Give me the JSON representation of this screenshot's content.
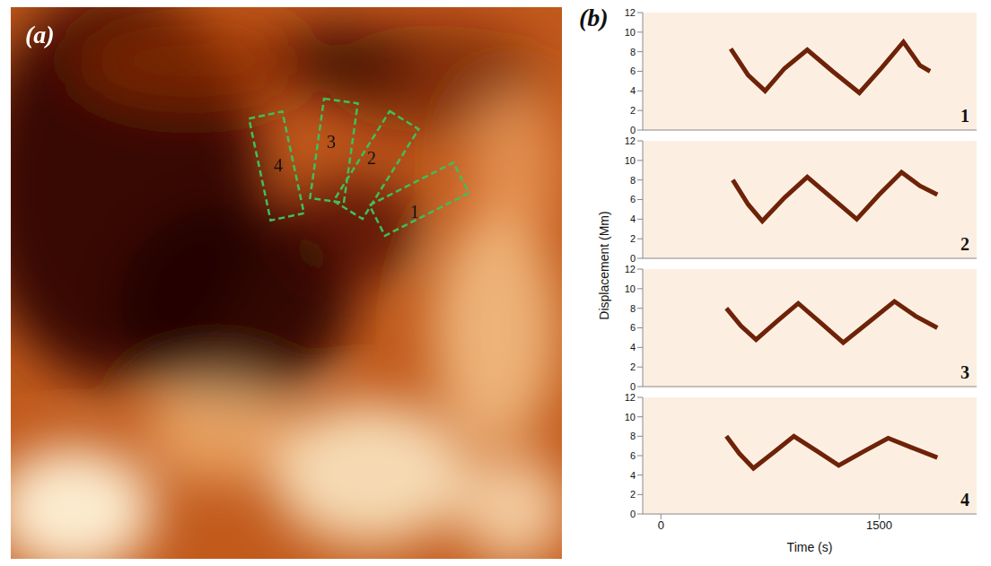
{
  "image_panel": {
    "label": "(a)",
    "boxes": [
      "1",
      "2",
      "3",
      "4"
    ]
  },
  "panel_b": {
    "label": "(b)",
    "ylabel": "Displacement (Mm)",
    "xlabel": "Time (s)"
  },
  "chart_data": [
    {
      "type": "line",
      "annotation": "1",
      "x": [
        480,
        600,
        716,
        850,
        1006,
        1180,
        1364,
        1520,
        1667,
        1780,
        1850
      ],
      "values": [
        8.3,
        5.6,
        4.0,
        6.3,
        8.2,
        6.0,
        3.8,
        6.4,
        9.0,
        6.6,
        6.0
      ],
      "color": "#6e2208",
      "xlim": [
        -125,
        2170
      ],
      "ylim": [
        0,
        12
      ],
      "xticks": [
        0,
        1500
      ],
      "yticks": [
        0,
        2,
        4,
        6,
        8,
        10,
        12
      ],
      "tick_labels": "y"
    },
    {
      "type": "line",
      "annotation": "2",
      "x": [
        494,
        600,
        697,
        850,
        1006,
        1180,
        1346,
        1500,
        1654,
        1780,
        1900
      ],
      "values": [
        8.0,
        5.5,
        3.8,
        6.2,
        8.3,
        6.1,
        4.0,
        6.5,
        8.8,
        7.4,
        6.5
      ],
      "color": "#6e2208",
      "xlim": [
        -125,
        2170
      ],
      "ylim": [
        0,
        12
      ],
      "xticks": [
        0,
        1500
      ],
      "yticks": [
        0,
        2,
        4,
        6,
        8,
        10,
        12
      ],
      "tick_labels": "y"
    },
    {
      "type": "line",
      "annotation": "3",
      "x": [
        450,
        550,
        654,
        800,
        944,
        1100,
        1253,
        1430,
        1605,
        1750,
        1900
      ],
      "values": [
        8.0,
        6.2,
        4.8,
        6.7,
        8.5,
        6.5,
        4.5,
        6.6,
        8.7,
        7.2,
        6.0
      ],
      "color": "#6e2208",
      "xlim": [
        -125,
        2170
      ],
      "ylim": [
        0,
        12
      ],
      "xticks": [
        0,
        1500
      ],
      "yticks": [
        0,
        2,
        4,
        6,
        8,
        10,
        12
      ],
      "tick_labels": "y"
    },
    {
      "type": "line",
      "annotation": "4",
      "x": [
        450,
        540,
        636,
        780,
        914,
        1070,
        1222,
        1390,
        1562,
        1730,
        1900
      ],
      "values": [
        8.0,
        6.2,
        4.7,
        6.4,
        8.0,
        6.5,
        5.0,
        6.4,
        7.8,
        6.8,
        5.8
      ],
      "color": "#6e2208",
      "xlim": [
        -125,
        2170
      ],
      "ylim": [
        0,
        12
      ],
      "xticks": [
        0,
        1500
      ],
      "yticks": [
        0,
        2,
        4,
        6,
        8,
        10,
        12
      ],
      "tick_labels": true
    }
  ]
}
